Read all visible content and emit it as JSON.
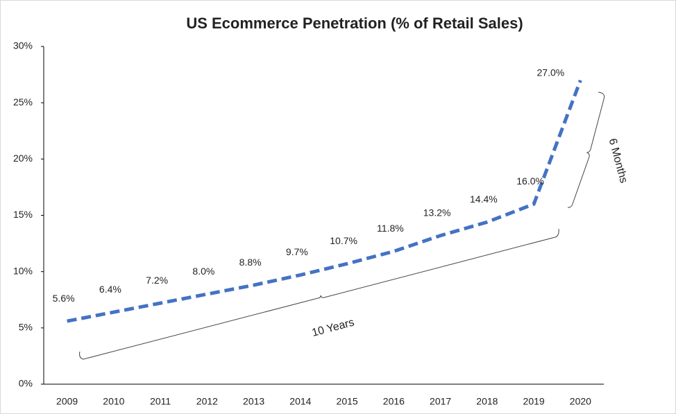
{
  "chart_data": {
    "type": "line",
    "title": "US Ecommerce Penetration (% of Retail Sales)",
    "categories": [
      "2009",
      "2010",
      "2011",
      "2012",
      "2013",
      "2014",
      "2015",
      "2016",
      "2017",
      "2018",
      "2019",
      "2020"
    ],
    "series": [
      {
        "name": "US Ecommerce Penetration",
        "color": "#4472c4",
        "values": [
          5.6,
          6.4,
          7.2,
          8.0,
          8.8,
          9.7,
          10.7,
          11.8,
          13.2,
          14.4,
          16.0,
          27.0
        ],
        "value_labels": [
          "5.6%",
          "6.4%",
          "7.2%",
          "8.0%",
          "8.8%",
          "9.7%",
          "10.7%",
          "11.8%",
          "13.2%",
          "14.4%",
          "16.0%",
          "27.0%"
        ]
      }
    ],
    "ylim": [
      0,
      30
    ],
    "yticks": [
      {
        "value": 0,
        "label": "0%"
      },
      {
        "value": 5,
        "label": "5%"
      },
      {
        "value": 10,
        "label": "10%"
      },
      {
        "value": 15,
        "label": "15%"
      },
      {
        "value": 20,
        "label": "20%"
      },
      {
        "value": 25,
        "label": "25%"
      },
      {
        "value": 30,
        "label": "30%"
      }
    ],
    "grid": false,
    "annotations": [
      "10 Years",
      "6 Months"
    ]
  }
}
